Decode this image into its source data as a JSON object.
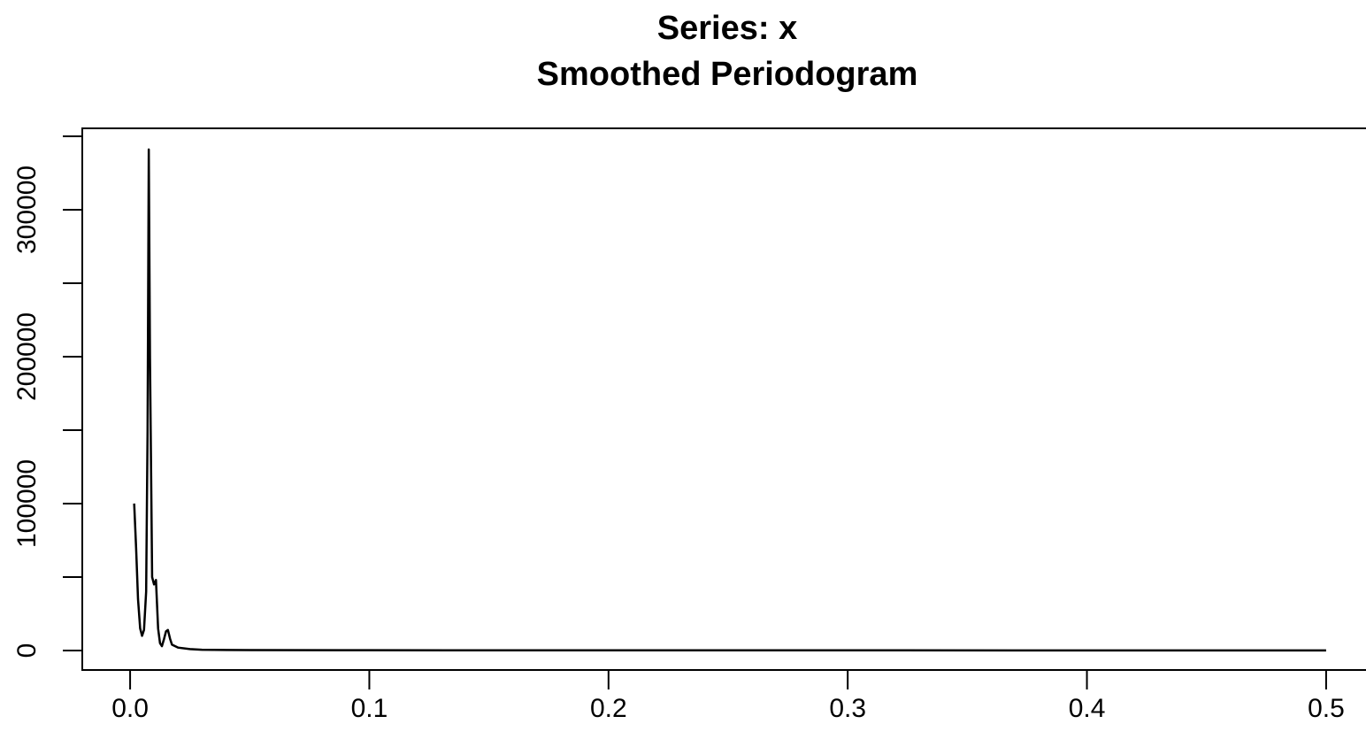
{
  "chart_data": {
    "type": "line",
    "title": "Series: x",
    "subtitle": "Smoothed Periodogram",
    "x": [
      0.0017,
      0.0025,
      0.0033,
      0.0042,
      0.005,
      0.0058,
      0.0067,
      0.0073,
      0.0078,
      0.0083,
      0.0092,
      0.01,
      0.0108,
      0.0117,
      0.0125,
      0.0133,
      0.0142,
      0.015,
      0.0158,
      0.0167,
      0.0175,
      0.02,
      0.025,
      0.03,
      0.05,
      0.1,
      0.2,
      0.3,
      0.4,
      0.5
    ],
    "series": [
      {
        "color": "#000000",
        "values": [
          100000,
          70000,
          35000,
          15000,
          10000,
          14000,
          40000,
          150000,
          341000,
          200000,
          50000,
          45000,
          48000,
          15000,
          5000,
          3000,
          8000,
          13000,
          14000,
          8000,
          4000,
          2000,
          1000,
          500,
          300,
          200,
          150,
          120,
          100,
          100
        ]
      }
    ],
    "xlim": [
      -0.02,
      0.52
    ],
    "ylim": [
      -13250,
      355400
    ],
    "xticks": [
      {
        "value": 0,
        "label": "0.0"
      },
      0.1,
      0.2,
      0.3,
      0.4,
      0.5
    ],
    "yticks": [
      0,
      {
        "value": 50000,
        "label": null
      },
      100000,
      {
        "value": 150000,
        "label": null
      },
      200000,
      {
        "value": 250000,
        "label": null
      },
      300000,
      {
        "value": 350000,
        "label": null
      }
    ]
  }
}
